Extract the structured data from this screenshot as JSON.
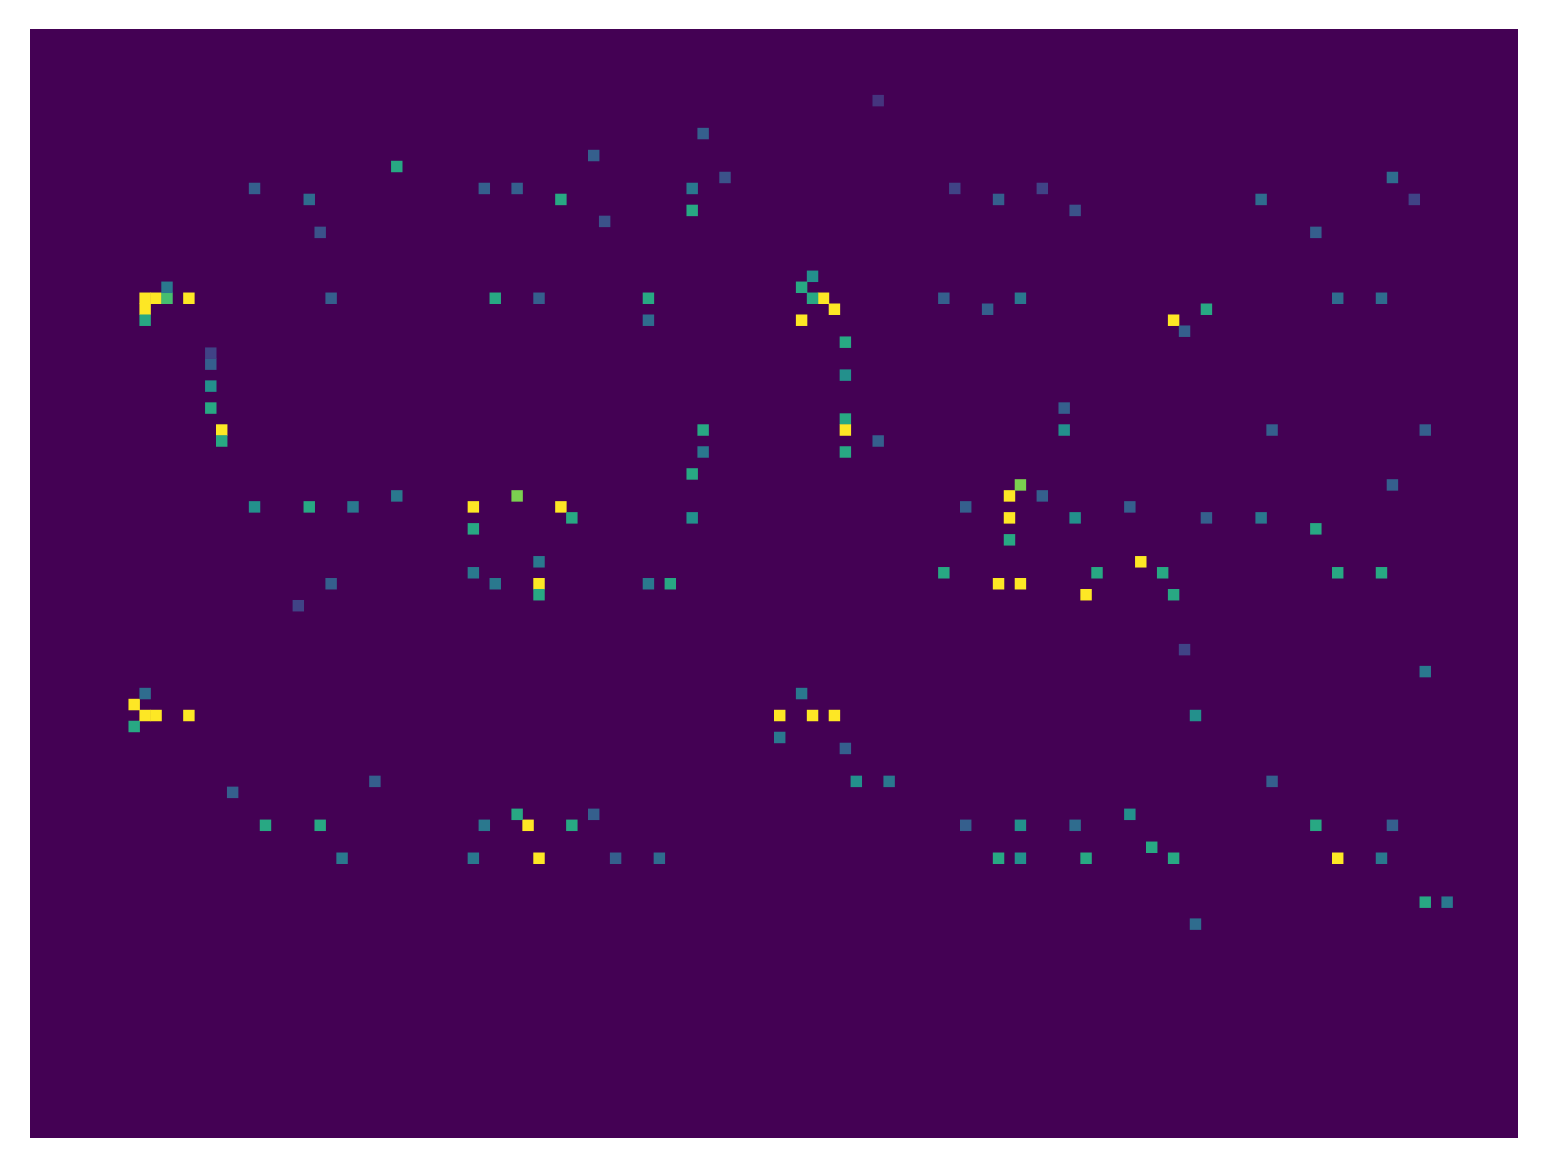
{
  "chart_data": {
    "type": "heatmap",
    "xlim": [
      0,
      136
    ],
    "ylim": [
      0,
      101
    ],
    "zlim": [
      0,
      1
    ],
    "tick_labels": false,
    "grid": false,
    "cells": [
      [
        33,
        12,
        0.6
      ],
      [
        25,
        15,
        0.35
      ],
      [
        20,
        14,
        0.3
      ],
      [
        26,
        18,
        0.25
      ],
      [
        48,
        15,
        0.6
      ],
      [
        44,
        14,
        0.3
      ],
      [
        41,
        14,
        0.3
      ],
      [
        51,
        11,
        0.3
      ],
      [
        52,
        17,
        0.25
      ],
      [
        60,
        16,
        0.6
      ],
      [
        60,
        14,
        0.4
      ],
      [
        61,
        9,
        0.3
      ],
      [
        63,
        13,
        0.25
      ],
      [
        77,
        6,
        0.15
      ],
      [
        84,
        14,
        0.2
      ],
      [
        88,
        15,
        0.3
      ],
      [
        92,
        14,
        0.2
      ],
      [
        95,
        16,
        0.25
      ],
      [
        112,
        15,
        0.35
      ],
      [
        117,
        18,
        0.3
      ],
      [
        124,
        13,
        0.35
      ],
      [
        126,
        15,
        0.2
      ],
      [
        10,
        24,
        1
      ],
      [
        11,
        24,
        1
      ],
      [
        10,
        25,
        1
      ],
      [
        12,
        24,
        0.7
      ],
      [
        14,
        24,
        1
      ],
      [
        10,
        26,
        0.6
      ],
      [
        12,
        23,
        0.4
      ],
      [
        16,
        32,
        0.5
      ],
      [
        16,
        34,
        0.6
      ],
      [
        17,
        36,
        1
      ],
      [
        17,
        37,
        0.6
      ],
      [
        16,
        30,
        0.3
      ],
      [
        16,
        29,
        0.2
      ],
      [
        27,
        24,
        0.3
      ],
      [
        42,
        24,
        0.6
      ],
      [
        46,
        24,
        0.3
      ],
      [
        56,
        24,
        0.6
      ],
      [
        56,
        26,
        0.35
      ],
      [
        70,
        23,
        0.6
      ],
      [
        71,
        22,
        0.5
      ],
      [
        70,
        26,
        1
      ],
      [
        72,
        24,
        1
      ],
      [
        73,
        25,
        1
      ],
      [
        71,
        24,
        0.6
      ],
      [
        74,
        28,
        0.6
      ],
      [
        74,
        31,
        0.5
      ],
      [
        74,
        35,
        0.6
      ],
      [
        74,
        36,
        1
      ],
      [
        74,
        38,
        0.6
      ],
      [
        77,
        37,
        0.3
      ],
      [
        83,
        24,
        0.3
      ],
      [
        87,
        25,
        0.3
      ],
      [
        90,
        24,
        0.4
      ],
      [
        104,
        26,
        1
      ],
      [
        107,
        25,
        0.6
      ],
      [
        105,
        27,
        0.3
      ],
      [
        119,
        24,
        0.35
      ],
      [
        123,
        24,
        0.35
      ],
      [
        61,
        36,
        0.6
      ],
      [
        60,
        40,
        0.6
      ],
      [
        60,
        44,
        0.5
      ],
      [
        61,
        38,
        0.4
      ],
      [
        94,
        36,
        0.5
      ],
      [
        94,
        34,
        0.3
      ],
      [
        113,
        36,
        0.3
      ],
      [
        127,
        36,
        0.3
      ],
      [
        20,
        43,
        0.5
      ],
      [
        25,
        43,
        0.6
      ],
      [
        29,
        43,
        0.4
      ],
      [
        33,
        42,
        0.4
      ],
      [
        40,
        43,
        1
      ],
      [
        40,
        45,
        0.6
      ],
      [
        44,
        42,
        0.8
      ],
      [
        48,
        43,
        1
      ],
      [
        49,
        44,
        0.6
      ],
      [
        46,
        48,
        0.4
      ],
      [
        85,
        43,
        0.3
      ],
      [
        89,
        42,
        1
      ],
      [
        89,
        44,
        1
      ],
      [
        90,
        41,
        0.8
      ],
      [
        89,
        46,
        0.6
      ],
      [
        92,
        42,
        0.3
      ],
      [
        95,
        44,
        0.5
      ],
      [
        100,
        43,
        0.3
      ],
      [
        107,
        44,
        0.3
      ],
      [
        112,
        44,
        0.4
      ],
      [
        117,
        45,
        0.6
      ],
      [
        124,
        41,
        0.3
      ],
      [
        42,
        50,
        0.4
      ],
      [
        46,
        50,
        1
      ],
      [
        46,
        51,
        0.6
      ],
      [
        40,
        49,
        0.4
      ],
      [
        56,
        50,
        0.4
      ],
      [
        58,
        50,
        0.6
      ],
      [
        27,
        50,
        0.3
      ],
      [
        24,
        52,
        0.2
      ],
      [
        83,
        49,
        0.6
      ],
      [
        88,
        50,
        1
      ],
      [
        90,
        50,
        1
      ],
      [
        96,
        51,
        1
      ],
      [
        97,
        49,
        0.6
      ],
      [
        101,
        48,
        1
      ],
      [
        103,
        49,
        0.6
      ],
      [
        104,
        51,
        0.6
      ],
      [
        105,
        56,
        0.2
      ],
      [
        106,
        62,
        0.5
      ],
      [
        119,
        49,
        0.6
      ],
      [
        123,
        49,
        0.6
      ],
      [
        127,
        58,
        0.4
      ],
      [
        9,
        61,
        1
      ],
      [
        9,
        63,
        0.6
      ],
      [
        10,
        62,
        1
      ],
      [
        11,
        62,
        1
      ],
      [
        14,
        62,
        1
      ],
      [
        10,
        60,
        0.35
      ],
      [
        68,
        62,
        1
      ],
      [
        68,
        64,
        0.4
      ],
      [
        71,
        62,
        1
      ],
      [
        73,
        62,
        1
      ],
      [
        70,
        60,
        0.4
      ],
      [
        74,
        65,
        0.3
      ],
      [
        75,
        68,
        0.5
      ],
      [
        78,
        68,
        0.4
      ],
      [
        18,
        69,
        0.3
      ],
      [
        21,
        72,
        0.6
      ],
      [
        26,
        72,
        0.6
      ],
      [
        28,
        75,
        0.4
      ],
      [
        31,
        68,
        0.3
      ],
      [
        41,
        72,
        0.4
      ],
      [
        40,
        75,
        0.4
      ],
      [
        45,
        72,
        1
      ],
      [
        44,
        71,
        0.6
      ],
      [
        46,
        75,
        1
      ],
      [
        49,
        72,
        0.6
      ],
      [
        51,
        71,
        0.3
      ],
      [
        53,
        75,
        0.3
      ],
      [
        57,
        75,
        0.35
      ],
      [
        85,
        72,
        0.3
      ],
      [
        88,
        75,
        0.6
      ],
      [
        90,
        72,
        0.5
      ],
      [
        90,
        75,
        0.5
      ],
      [
        95,
        72,
        0.35
      ],
      [
        96,
        75,
        0.6
      ],
      [
        100,
        71,
        0.5
      ],
      [
        102,
        74,
        0.6
      ],
      [
        104,
        75,
        0.6
      ],
      [
        106,
        81,
        0.35
      ],
      [
        113,
        68,
        0.3
      ],
      [
        117,
        72,
        0.6
      ],
      [
        119,
        75,
        1
      ],
      [
        123,
        75,
        0.4
      ],
      [
        124,
        72,
        0.3
      ],
      [
        127,
        79,
        0.6
      ],
      [
        129,
        79,
        0.4
      ]
    ]
  }
}
